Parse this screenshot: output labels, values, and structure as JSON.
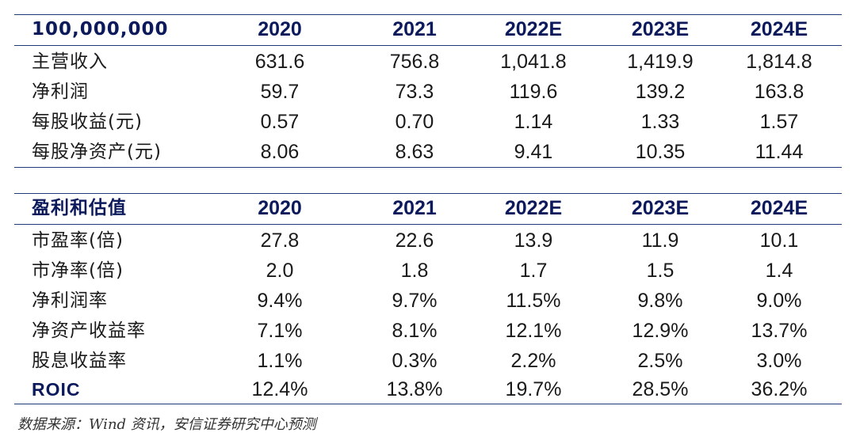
{
  "table1": {
    "header": [
      "100,000,000",
      "2020",
      "2021",
      "2022E",
      "2023E",
      "2024E"
    ],
    "rows": [
      [
        "主营收入",
        "631.6",
        "756.8",
        "1,041.8",
        "1,419.9",
        "1,814.8"
      ],
      [
        "净利润",
        "59.7",
        "73.3",
        "119.6",
        "139.2",
        "163.8"
      ],
      [
        "每股收益(元)",
        "0.57",
        "0.70",
        "1.14",
        "1.33",
        "1.57"
      ],
      [
        "每股净资产(元)",
        "8.06",
        "8.63",
        "9.41",
        "10.35",
        "11.44"
      ]
    ]
  },
  "table2": {
    "header": [
      "盈利和估值",
      "2020",
      "2021",
      "2022E",
      "2023E",
      "2024E"
    ],
    "rows": [
      [
        "市盈率(倍)",
        "27.8",
        "22.6",
        "13.9",
        "11.9",
        "10.1"
      ],
      [
        "市净率(倍)",
        "2.0",
        "1.8",
        "1.7",
        "1.5",
        "1.4"
      ],
      [
        "净利润率",
        "9.4%",
        "9.7%",
        "11.5%",
        "9.8%",
        "9.0%"
      ],
      [
        "净资产收益率",
        "7.1%",
        "8.1%",
        "12.1%",
        "12.9%",
        "13.7%"
      ],
      [
        "股息收益率",
        "1.1%",
        "0.3%",
        "2.2%",
        "2.5%",
        "3.0%"
      ],
      [
        "ROIC",
        "12.4%",
        "13.8%",
        "19.7%",
        "28.5%",
        "36.2%"
      ]
    ]
  },
  "source": "数据来源：Wind 资讯，安信证券研究中心预测",
  "colors": {
    "rule": "#1f3a78",
    "header_text": "#0c1a5c"
  }
}
